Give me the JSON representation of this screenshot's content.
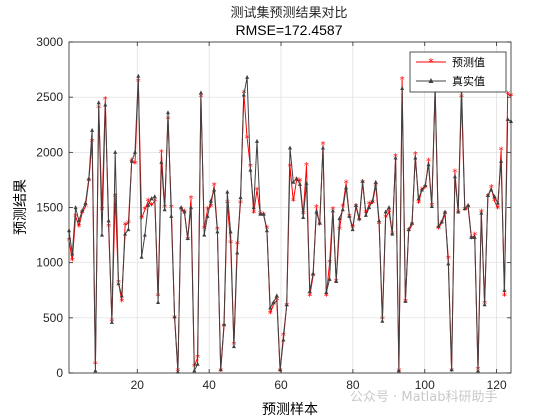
{
  "chart_data": {
    "type": "line",
    "title": "测试集预测结果对比",
    "subtitle": "RMSE=172.4587",
    "xlabel": "预测样本",
    "ylabel": "预测结果",
    "xlim": [
      1,
      124
    ],
    "ylim": [
      0,
      3000
    ],
    "xticks": [
      20,
      40,
      60,
      80,
      100,
      120
    ],
    "yticks": [
      0,
      500,
      1000,
      1500,
      2000,
      2500,
      3000
    ],
    "grid": true,
    "legend_position": "top-right",
    "series": [
      {
        "name": "预测值",
        "color": "#ff0000",
        "marker": "star",
        "values": [
          1200,
          1020,
          1420,
          1330,
          1450,
          1510,
          1740,
          2100,
          80,
          2400,
          1480,
          2480,
          1330,
          470,
          1600,
          820,
          650,
          1340,
          1360,
          1920,
          1900,
          2640,
          1400,
          1480,
          1560,
          1520,
          1560,
          700,
          2000,
          1500,
          2300,
          1500,
          500,
          20,
          1480,
          1460,
          1210,
          1580,
          60,
          140,
          2500,
          1310,
          1480,
          1510,
          1700,
          1300,
          20,
          420,
          1540,
          1180,
          260,
          1170,
          1540,
          2540,
          2130,
          1870,
          1450,
          1660,
          1440,
          1430,
          1310,
          540,
          620,
          660,
          20,
          340,
          610,
          1870,
          1560,
          1750,
          1740,
          1440,
          1880,
          700,
          880,
          1500,
          1340,
          2070,
          700,
          1000,
          1480,
          830,
          1300,
          1510,
          1720,
          1420,
          1320,
          1510,
          1380,
          1720,
          1450,
          1530,
          1540,
          1700,
          1350,
          490,
          1410,
          1460,
          1260,
          1960,
          20,
          2660,
          650,
          1290,
          1340,
          1980,
          1540,
          1660,
          1680,
          1920,
          1520,
          2550,
          1310,
          1360,
          1440,
          1040,
          20,
          1820,
          1460,
          2500,
          1480,
          1500,
          1220,
          1250,
          30,
          1460,
          630,
          1600,
          1680,
          1560,
          1490,
          2020,
          700,
          2530,
          2510
        ]
      },
      {
        "name": "真实值",
        "color": "#404040",
        "marker": "triangle",
        "values": [
          1290,
          1080,
          1500,
          1380,
          1470,
          1540,
          1760,
          2200,
          20,
          2450,
          1250,
          2430,
          1380,
          460,
          2000,
          810,
          700,
          1260,
          1300,
          1920,
          2000,
          2690,
          1050,
          1250,
          1520,
          1580,
          1600,
          640,
          1910,
          1480,
          2360,
          1420,
          510,
          10,
          1500,
          1460,
          1220,
          1500,
          20,
          80,
          2540,
          1250,
          1420,
          1560,
          1660,
          1280,
          30,
          440,
          1640,
          1280,
          240,
          1090,
          1590,
          2520,
          2680,
          1840,
          1500,
          2100,
          1440,
          1440,
          1290,
          590,
          640,
          700,
          30,
          300,
          620,
          2040,
          1730,
          1760,
          1710,
          1410,
          1720,
          740,
          900,
          1460,
          1360,
          2040,
          730,
          850,
          1470,
          830,
          1400,
          1480,
          1680,
          1420,
          1300,
          1520,
          1400,
          1740,
          1430,
          1500,
          1560,
          1730,
          1380,
          470,
          1460,
          1500,
          1260,
          1950,
          20,
          2580,
          650,
          1300,
          1360,
          1950,
          1580,
          1660,
          1700,
          1890,
          1510,
          2600,
          1330,
          1370,
          1460,
          990,
          30,
          1780,
          1460,
          2610,
          1490,
          1520,
          1230,
          1230,
          20,
          1450,
          620,
          1610,
          1660,
          1600,
          1540,
          1920,
          750,
          2300,
          2280
        ]
      }
    ]
  },
  "watermark": "公众号 · Matlab科研助手"
}
